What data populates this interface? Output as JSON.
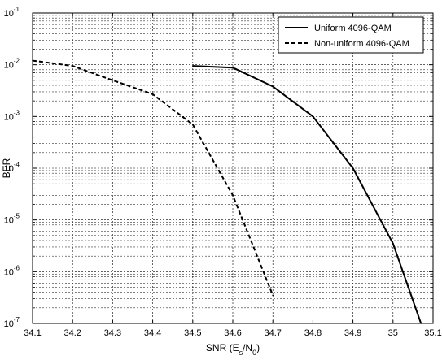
{
  "chart_data": {
    "type": "line",
    "xlabel": "SNR (E",
    "xlabel_sub1": "s",
    "xlabel_mid": "/N",
    "xlabel_sub2": "0",
    "xlabel_end": ")",
    "ylabel": "BER",
    "xlim": [
      34.1,
      35.1
    ],
    "ylim": [
      1e-07,
      0.1
    ],
    "yscale": "log",
    "grid": true,
    "legend_position": "top-right",
    "x_ticks": [
      "34.1",
      "34.2",
      "34.3",
      "34.4",
      "34.5",
      "34.6",
      "34.7",
      "34.8",
      "34.9",
      "35",
      "35.1"
    ],
    "y_ticks": [
      {
        "base": "10",
        "exp": "-7"
      },
      {
        "base": "10",
        "exp": "-6"
      },
      {
        "base": "10",
        "exp": "-5"
      },
      {
        "base": "10",
        "exp": "-4"
      },
      {
        "base": "10",
        "exp": "-3"
      },
      {
        "base": "10",
        "exp": "-2"
      },
      {
        "base": "10",
        "exp": "-1"
      }
    ],
    "series": [
      {
        "name": "Uniform 4096-QAM",
        "style": "solid",
        "x": [
          34.5,
          34.6,
          34.7,
          34.8,
          34.9,
          35.0,
          35.07
        ],
        "y": [
          0.0095,
          0.0088,
          0.0038,
          0.001,
          0.0001,
          3.5e-06,
          1e-07
        ]
      },
      {
        "name": "Non-uniform 4096-QAM",
        "style": "dashed",
        "x": [
          34.1,
          34.2,
          34.3,
          34.4,
          34.5,
          34.6,
          34.7
        ],
        "y": [
          0.012,
          0.0095,
          0.005,
          0.0027,
          0.0007,
          3e-05,
          3.5e-07
        ]
      }
    ]
  }
}
